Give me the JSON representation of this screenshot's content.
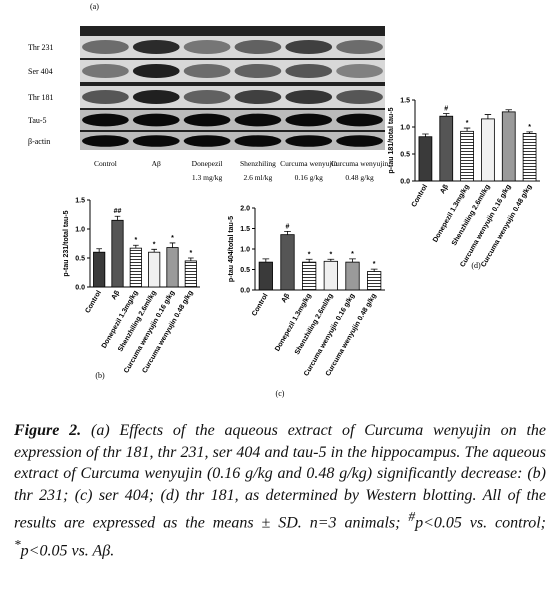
{
  "panel_a": {
    "label": "(a)",
    "rows": [
      "Thr 231",
      "Ser 404",
      "Thr 181",
      "Tau-5",
      "β-actin"
    ],
    "lanes": [
      {
        "name": "Control"
      },
      {
        "name": "Aβ"
      },
      {
        "name": "Donepezil",
        "dose": "1.3 mg/kg"
      },
      {
        "name": "Shenzhiling",
        "dose": "2.6 ml/kg"
      },
      {
        "name": "Curcuma wenyujin",
        "dose": "0.16 g/kg"
      },
      {
        "name": "Curcuma wenyujin",
        "dose": "0.48 g/kg"
      }
    ]
  },
  "chart_data": [
    {
      "type": "bar",
      "panel": "(b)",
      "ylabel": "p-tau 231/total tau-5",
      "categories": [
        "Control",
        "Aβ",
        "Donepezil 1.3mg/kg",
        "Shenzhiling 2.6ml/kg",
        "Curcuma wenyujin 0.16 g/kg",
        "Curcuma wenyujin 0.48 g/kg"
      ],
      "values": [
        0.6,
        1.15,
        0.67,
        0.6,
        0.68,
        0.45
      ],
      "errors": [
        0.06,
        0.07,
        0.05,
        0.05,
        0.08,
        0.05
      ],
      "annotations": [
        null,
        "##",
        "*",
        "*",
        "*",
        "*"
      ],
      "colors": [
        "#3a3a3a",
        "#555555",
        "#dcdcdc",
        "#f0f0f0",
        "#9a9a9a",
        "#4a4a4a"
      ],
      "ylim": [
        0,
        1.5
      ],
      "yticks": [
        {
          "value": 0,
          "label": "0.0"
        },
        0.5,
        {
          "value": 1,
          "label": "1.0"
        },
        1.5
      ]
    },
    {
      "type": "bar",
      "panel": "(c)",
      "ylabel": "p-tau 404/total tau-5",
      "categories": [
        "Control",
        "Aβ",
        "Donepezil 1.3mg/kg",
        "Shenzhiling 2.6ml/kg",
        "Curcuma wenyujin 0.16 g/kg",
        "Curcuma wenyujin 0.48 g/kg"
      ],
      "values": [
        0.68,
        1.35,
        0.68,
        0.7,
        0.68,
        0.45
      ],
      "errors": [
        0.08,
        0.08,
        0.07,
        0.05,
        0.08,
        0.06
      ],
      "annotations": [
        null,
        "#",
        "*",
        "*",
        "*",
        "*"
      ],
      "colors": [
        "#3a3a3a",
        "#555555",
        "#dcdcdc",
        "#f0f0f0",
        "#9a9a9a",
        "#4a4a4a"
      ],
      "ylim": [
        0,
        2
      ],
      "yticks": [
        {
          "value": 0,
          "label": "0.0"
        },
        0.5,
        {
          "value": 1,
          "label": "1.0"
        },
        1.5,
        {
          "value": 2,
          "label": "2.0"
        }
      ]
    },
    {
      "type": "bar",
      "panel": "(d)",
      "ylabel": "p-tau 181/total tau-5",
      "categories": [
        "Control",
        "Aβ",
        "Donepezil 1.3mg/kg",
        "Shenzhiling 2.6ml/kg",
        "Curcuma wenyujin 0.16 g/kg",
        "Curcuma wenyujin 0.48 g/kg"
      ],
      "values": [
        0.82,
        1.2,
        0.92,
        1.15,
        1.28,
        0.88
      ],
      "errors": [
        0.05,
        0.05,
        0.06,
        0.08,
        0.04,
        0.03
      ],
      "annotations": [
        null,
        "#",
        "*",
        null,
        null,
        "*"
      ],
      "colors": [
        "#3a3a3a",
        "#555555",
        "#dcdcdc",
        "#f0f0f0",
        "#9a9a9a",
        "#4a4a4a"
      ],
      "ylim": [
        0,
        1.5
      ],
      "yticks": [
        {
          "value": 0,
          "label": "0.0"
        },
        0.5,
        {
          "value": 1,
          "label": "1.0"
        },
        1.5
      ]
    }
  ],
  "caption": {
    "label": "Figure 2.",
    "segments": [
      {
        "text": " (a) Effects of the aqueous extract of Curcuma wenyujin on the expression of thr 181, thr 231, ser 404 and tau-5 in the hippocampus. The aqueous extract of Curcuma wenyujin (0.16 g/kg and 0.48 g/kg) significantly decrease: (b) thr 231; (c) ser 404; (d) thr 181, as determined by Western blotting. All of the results are expressed as the means ± SD. n=3 animals; "
      },
      {
        "text": "#",
        "sup": true
      },
      {
        "text": "p<0.05 vs. control; "
      },
      {
        "text": "*",
        "sup": true
      },
      {
        "text": "p<0.05 vs. Aβ."
      }
    ]
  }
}
